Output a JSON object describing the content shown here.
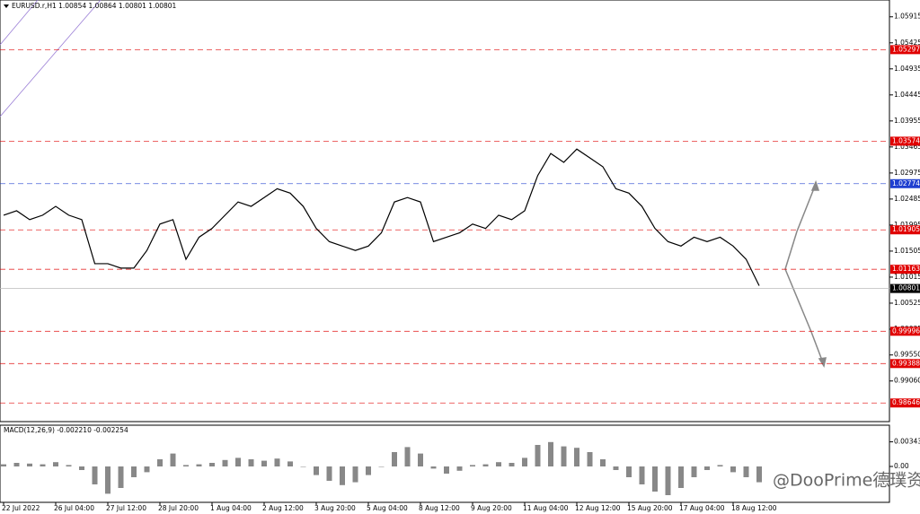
{
  "chart_data": [
    {
      "type": "line",
      "title": "EURUSD.r,H1  1.00854 1.00864 1.00801 1.00801",
      "categories": [
        "22 Jul 2022",
        null,
        null,
        null,
        "26 Jul 04:00",
        null,
        null,
        null,
        "27 Jul 12:00",
        null,
        null,
        null,
        "28 Jul 20:00",
        null,
        null,
        null,
        "1 Aug 04:00",
        null,
        null,
        null,
        "2 Aug 12:00",
        null,
        null,
        null,
        "3 Aug 20:00",
        null,
        null,
        null,
        "5 Aug 04:00",
        null,
        null,
        null,
        "8 Aug 12:00",
        null,
        null,
        null,
        "9 Aug 20:00",
        null,
        null,
        null,
        "11 Aug 04:00",
        null,
        null,
        null,
        "12 Aug 12:00",
        null,
        null,
        null,
        "15 Aug 20:00",
        null,
        null,
        null,
        "17 Aug 04:00",
        null,
        null,
        null,
        "18 Aug 12:00",
        null,
        null
      ],
      "series": [
        {
          "color": "#000000",
          "values": [
            1.02181,
            1.02264,
            1.02097,
            1.02181,
            1.02347,
            1.02181,
            1.02097,
            1.01268,
            1.01268,
            1.01185,
            1.01185,
            1.01517,
            1.02014,
            1.02097,
            1.01351,
            1.01766,
            1.01932,
            1.02181,
            1.0243,
            1.02347,
            1.02513,
            1.02679,
            1.02596,
            1.02347,
            1.01932,
            1.01683,
            1.016,
            1.01517,
            1.016,
            1.01849,
            1.0243,
            1.02513,
            1.0243,
            1.01683,
            1.01766,
            1.01849,
            1.02014,
            1.01932,
            1.02181,
            1.02097,
            1.02264,
            1.02927,
            1.03342,
            1.03176,
            1.03425,
            1.0326,
            1.03093,
            1.02679,
            1.02596,
            1.02347,
            1.01932,
            1.01683,
            1.016,
            1.01766,
            1.01683,
            1.01766,
            1.016,
            1.01351,
            1.00853
          ]
        }
      ],
      "ylim": [
        0.98363,
        1.06164
      ],
      "yticks": [
        1.05915,
        1.05425,
        1.04935,
        1.04445,
        1.03955,
        1.03465,
        1.02975,
        1.02485,
        1.01995,
        1.01505,
        1.01015,
        1.00525,
        1.00035,
        {
          "value": 0.9955,
          "label": "0.99550"
        },
        {
          "value": 0.9906,
          "label": "0.99060"
        }
      ],
      "levels": [
        {
          "value": 1.05297,
          "color": "#e00000"
        },
        {
          "value": 1.03574,
          "color": "#e00000"
        },
        {
          "value": 1.02774,
          "color": "#1f3fd0"
        },
        {
          "value": 1.01905,
          "color": "#e00000"
        },
        {
          "value": 1.01163,
          "color": "#e00000"
        },
        {
          "value": 1.00801,
          "color": "#000000"
        },
        {
          "value": 0.99996,
          "color": "#e00000"
        },
        {
          "value": 0.99388,
          "color": "#e00000"
        },
        {
          "value": 0.98646,
          "color": "#e00000"
        }
      ],
      "watermark": "@DooPrime德璞资本"
    },
    {
      "type": "bar",
      "title": "MACD(12,26,9) -0.002210 -0.002254",
      "color": "#888888",
      "values": [
        0.0003,
        0.0005,
        0.0004,
        0.0003,
        0.0006,
        0.0002,
        -0.0005,
        -0.0025,
        -0.0038,
        -0.003,
        -0.0015,
        -0.0008,
        0.001,
        0.0018,
        0.0002,
        0.0003,
        0.0005,
        0.0009,
        0.0012,
        0.001,
        0.0008,
        0.0011,
        0.0007,
        0.0,
        -0.0012,
        -0.002,
        -0.0026,
        -0.0022,
        -0.0012,
        0.0,
        0.002,
        0.0027,
        0.0018,
        -0.0003,
        -0.001,
        -0.0006,
        0.0002,
        0.0003,
        0.0006,
        0.0005,
        0.0012,
        0.003,
        0.0034,
        0.0028,
        0.0026,
        0.002,
        0.001,
        -0.0005,
        -0.0015,
        -0.0025,
        -0.0035,
        -0.004,
        -0.003,
        -0.0015,
        -0.0005,
        0.0002,
        -0.0008,
        -0.0015,
        -0.0022
      ],
      "ylim": [
        -0.0045,
        0.004
      ],
      "yticks": [
        {
          "value": 0.003431,
          "label": "0.003431"
        },
        {
          "value": 0,
          "label": "0.00"
        }
      ]
    }
  ]
}
